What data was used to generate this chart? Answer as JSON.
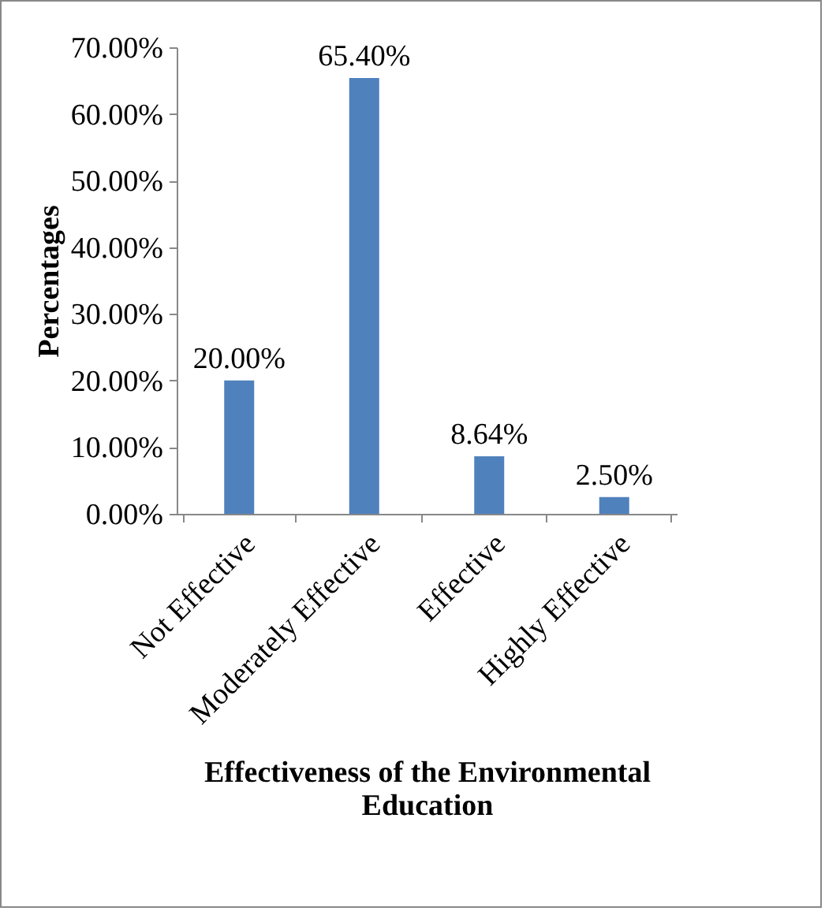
{
  "chart_data": {
    "type": "bar",
    "xlabel": "Effectiveness of the Environmental Education",
    "ylabel": "Percentages",
    "categories": [
      "Not Effective",
      "Moderately Effective",
      "Effective",
      "Highly Effective"
    ],
    "values": [
      20,
      65.4,
      8.64,
      2.5
    ],
    "color": "#4f81bd",
    "value_labels": [
      "20.00%",
      "65.40%",
      "8.64%",
      "2.50%"
    ],
    "ylim": [
      0,
      70
    ],
    "yticks": [
      {
        "value": 0,
        "label": "0.00%"
      },
      {
        "value": 10,
        "label": "10.00%"
      },
      {
        "value": 20,
        "label": "20.00%"
      },
      {
        "value": 30,
        "label": "30.00%"
      },
      {
        "value": 40,
        "label": "40.00%"
      },
      {
        "value": 50,
        "label": "50.00%"
      },
      {
        "value": 60,
        "label": "60.00%"
      },
      {
        "value": 70,
        "label": "70.00%"
      }
    ],
    "grid": false
  }
}
